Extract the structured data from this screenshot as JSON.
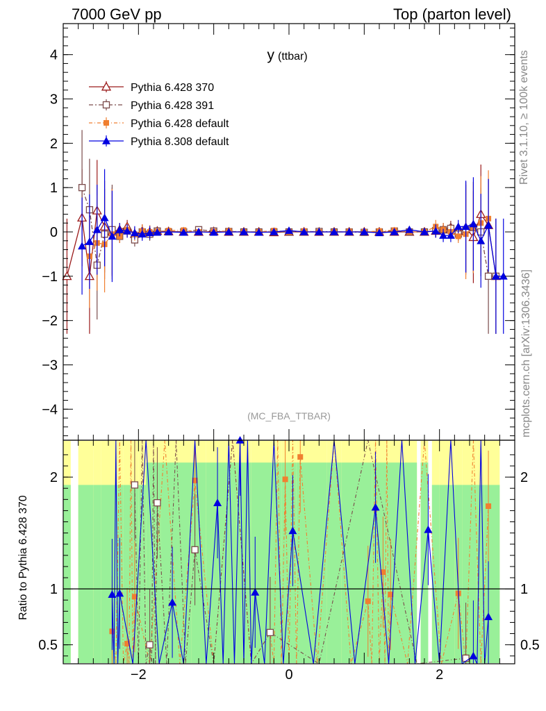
{
  "header": {
    "left": "7000 GeV pp",
    "right": "Top (parton level)"
  },
  "side_labels": {
    "rivet": "Rivet 3.1.10, ≥ 100k events",
    "mcplots": "mcplots.cern.ch [arXiv:1306.3436]"
  },
  "chart_data": [
    {
      "type": "scatter",
      "title": "y",
      "title_sub": "(ttbar)",
      "watermark": "(MC_FBA_TTBAR)",
      "xlim": [
        -3.0,
        3.0
      ],
      "ylim": [
        -4.7,
        4.7
      ],
      "y_ticks": [
        -4,
        -3,
        -2,
        -1,
        0,
        1,
        2,
        3,
        4
      ],
      "x_ticks": [
        -2,
        0,
        2
      ],
      "legend_position": "top-left",
      "series": [
        {
          "name": "Pythia 6.428 370",
          "color": "#9a1a1a",
          "marker": "open-triangle",
          "x": [
            -2.95,
            -2.75,
            -2.65,
            -2.55,
            -2.45,
            -2.35,
            -2.25,
            -2.15,
            -2.05,
            -1.95,
            -1.85,
            -1.75,
            -1.6,
            -1.4,
            -1.2,
            -1.0,
            -0.8,
            -0.6,
            -0.4,
            -0.2,
            0.0,
            0.2,
            0.4,
            0.6,
            0.8,
            1.0,
            1.2,
            1.4,
            1.6,
            1.8,
            1.95,
            2.05,
            2.15,
            2.25,
            2.35,
            2.45,
            2.55,
            2.65,
            2.75
          ],
          "y": [
            -1.0,
            0.32,
            -1.0,
            0.48,
            0.12,
            0.0,
            0.05,
            0.12,
            -0.05,
            0.02,
            0.0,
            0.02,
            0.01,
            0.0,
            0.0,
            0.01,
            0.0,
            0.0,
            0.0,
            -0.01,
            0.0,
            0.0,
            0.0,
            0.0,
            0.0,
            0.0,
            0.0,
            0.0,
            0.0,
            0.0,
            0.02,
            0.05,
            0.1,
            0.02,
            0.1,
            -0.12,
            0.4,
            0.15,
            -1.0
          ]
        },
        {
          "name": "Pythia 6.428 391",
          "color": "#7a4a4a",
          "marker": "open-square",
          "x": [
            -2.75,
            -2.65,
            -2.55,
            -2.45,
            -2.35,
            -2.25,
            -2.15,
            -2.05,
            -1.95,
            -1.85,
            -1.75,
            -1.6,
            -1.4,
            -1.2,
            -1.0,
            -0.8,
            -0.6,
            -0.4,
            -0.2,
            0.0,
            0.2,
            0.4,
            0.6,
            0.8,
            1.0,
            1.2,
            1.4,
            1.6,
            1.8,
            1.95,
            2.05,
            2.15,
            2.25,
            2.35,
            2.45,
            2.55,
            2.65,
            2.75
          ],
          "y": [
            1.0,
            0.5,
            -0.75,
            -0.05,
            0.05,
            -0.1,
            0.02,
            -0.18,
            0.0,
            -0.05,
            0.02,
            0.0,
            0.0,
            0.05,
            0.02,
            0.01,
            0.0,
            0.0,
            0.0,
            0.0,
            0.0,
            0.01,
            0.0,
            0.0,
            -0.01,
            0.0,
            0.02,
            0.0,
            0.0,
            0.03,
            0.05,
            0.08,
            -0.05,
            0.05,
            0.1,
            0.0,
            -1.0,
            -1.0
          ]
        },
        {
          "name": "Pythia 6.428 default",
          "color": "#f07f30",
          "marker": "filled-square",
          "x": [
            -2.65,
            -2.55,
            -2.45,
            -2.35,
            -2.25,
            -2.15,
            -2.05,
            -1.95,
            -1.85,
            -1.75,
            -1.6,
            -1.4,
            -1.2,
            -1.0,
            -0.8,
            -0.6,
            -0.4,
            -0.2,
            0.0,
            0.2,
            0.4,
            0.6,
            0.8,
            1.0,
            1.2,
            1.4,
            1.6,
            1.8,
            1.95,
            2.05,
            2.15,
            2.25,
            2.35,
            2.45,
            2.55,
            2.65
          ],
          "y": [
            -0.55,
            -0.25,
            -0.28,
            -0.05,
            -0.1,
            0.05,
            -0.05,
            0.02,
            0.0,
            0.01,
            0.03,
            0.04,
            0.0,
            0.01,
            0.02,
            0.0,
            0.0,
            0.03,
            0.0,
            0.02,
            0.0,
            0.0,
            0.01,
            0.0,
            0.02,
            0.04,
            0.0,
            0.0,
            0.12,
            0.05,
            0.0,
            -0.1,
            -0.05,
            0.1,
            0.2,
            0.3
          ]
        },
        {
          "name": "Pythia 8.308 default",
          "color": "#0000e0",
          "marker": "filled-triangle",
          "x": [
            -2.75,
            -2.65,
            -2.55,
            -2.45,
            -2.35,
            -2.25,
            -2.15,
            -2.05,
            -1.95,
            -1.85,
            -1.75,
            -1.6,
            -1.4,
            -1.2,
            -1.0,
            -0.8,
            -0.6,
            -0.4,
            -0.2,
            0.0,
            0.2,
            0.4,
            0.6,
            0.8,
            1.0,
            1.2,
            1.4,
            1.6,
            1.8,
            1.95,
            2.05,
            2.15,
            2.25,
            2.35,
            2.45,
            2.55,
            2.65,
            2.75,
            2.85
          ],
          "y": [
            -0.32,
            -0.22,
            0.05,
            0.32,
            -0.1,
            0.05,
            0.02,
            -0.02,
            -0.05,
            -0.02,
            -0.01,
            0.0,
            -0.01,
            0.0,
            -0.01,
            0.0,
            0.0,
            -0.01,
            0.0,
            0.03,
            0.0,
            0.0,
            0.0,
            0.0,
            0.0,
            -0.02,
            0.0,
            0.05,
            0.0,
            0.02,
            -0.08,
            -0.08,
            0.12,
            0.12,
            0.18,
            -0.2,
            0.15,
            -1.0,
            -1.0
          ]
        }
      ]
    },
    {
      "type": "scatter",
      "ylabel": "Ratio to Pythia 6.428 370",
      "xlim": [
        -3.0,
        3.0
      ],
      "ylim": [
        0.33,
        2.33
      ],
      "y_ticks": [
        0.5,
        1,
        2
      ],
      "x_ticks": [
        -2,
        0,
        2
      ],
      "reference_line": 1,
      "band_colors": {
        "inner": "#99f099",
        "outer": "#ffff99"
      },
      "series": [
        {
          "name": "Pythia 6.428 default",
          "color": "#f07f30",
          "x": [
            -2.35,
            -2.15,
            -2.05,
            -1.25,
            -0.25,
            -0.05,
            0.15,
            1.05,
            1.25,
            1.35,
            2.25,
            2.65
          ],
          "y": [
            0.62,
            0.51,
            0.93,
            1.97,
            0.61,
            1.98,
            2.18,
            0.89,
            1.15,
            0.95,
            0.96,
            1.74
          ]
        },
        {
          "name": "Pythia 6.428 391",
          "color": "#7a4a4a",
          "x": [
            -2.05,
            -1.85,
            -1.75,
            -1.25,
            -0.25,
            2.35
          ],
          "y": [
            1.93,
            0.5,
            1.77,
            1.35,
            0.61,
            0.38
          ]
        },
        {
          "name": "Pythia 8.308 default",
          "color": "#0000e0",
          "x": [
            -2.35,
            -2.25,
            -1.55,
            -0.95,
            -0.65,
            -0.45,
            0.05,
            1.15,
            1.85,
            2.45,
            2.65
          ],
          "y": [
            0.95,
            0.96,
            0.88,
            1.77,
            2.33,
            0.97,
            1.52,
            1.73,
            1.53,
            0.4,
            0.75
          ]
        }
      ]
    }
  ]
}
